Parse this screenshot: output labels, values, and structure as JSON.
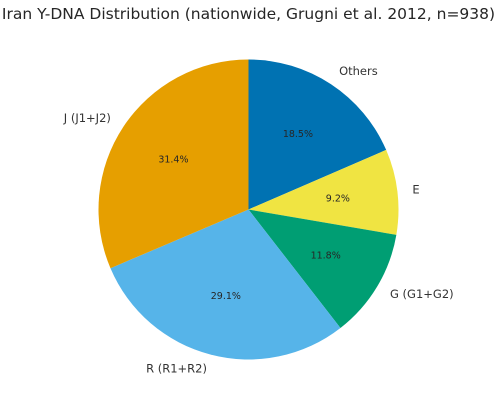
{
  "chart_data": {
    "type": "pie",
    "title": "Iran Y-DNA Distribution (nationwide, Grugni et al. 2012, n=938)",
    "start_angle_deg": 90,
    "direction": "clockwise",
    "slices": [
      {
        "label": "Others",
        "value": 18.5,
        "pct_label": "18.5%",
        "color": "#0072B2"
      },
      {
        "label": "E",
        "value": 9.2,
        "pct_label": "9.2%",
        "color": "#F0E442"
      },
      {
        "label": "G (G1+G2)",
        "value": 11.8,
        "pct_label": "11.8%",
        "color": "#009E73"
      },
      {
        "label": "R (R1+R2)",
        "value": 29.1,
        "pct_label": "29.1%",
        "color": "#56B4E9"
      },
      {
        "label": "J (J1+J2)",
        "value": 31.4,
        "pct_label": "31.4%",
        "color": "#E69F00"
      }
    ]
  }
}
